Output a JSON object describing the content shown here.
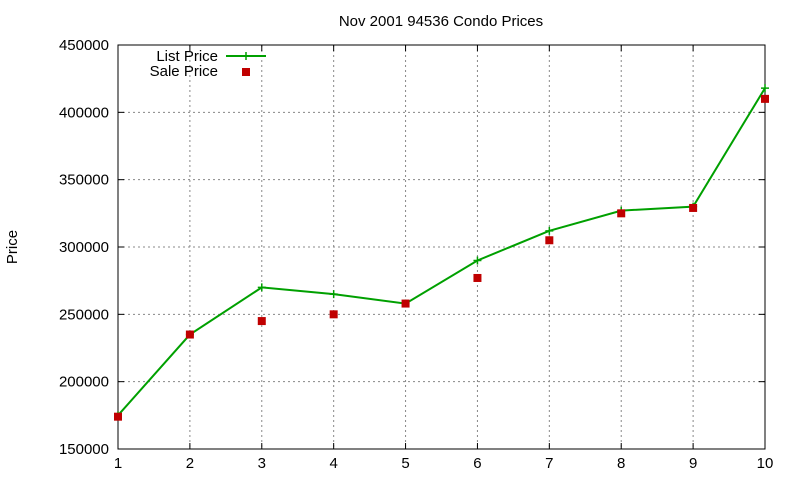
{
  "chart_data": {
    "type": "line",
    "title": "Nov 2001 94536 Condo Prices",
    "xlabel": "",
    "ylabel": "Price",
    "x": [
      1,
      2,
      3,
      4,
      5,
      6,
      7,
      8,
      9,
      10
    ],
    "xlim": [
      1,
      10
    ],
    "ylim": [
      150000,
      450000
    ],
    "x_ticks": [
      "1",
      "2",
      "3",
      "4",
      "5",
      "6",
      "7",
      "8",
      "9",
      "10"
    ],
    "y_ticks": [
      "150000",
      "200000",
      "250000",
      "300000",
      "350000",
      "400000",
      "450000"
    ],
    "grid": true,
    "legend_position": "top-left",
    "series": [
      {
        "name": "List Price",
        "style": "line-with-plus-markers",
        "color": "#00a000",
        "values": [
          175000,
          235000,
          270000,
          265000,
          258000,
          290000,
          312000,
          327000,
          330000,
          418000
        ]
      },
      {
        "name": "Sale Price",
        "style": "square-markers",
        "color": "#c00000",
        "values": [
          174000,
          235000,
          245000,
          250000,
          258000,
          277000,
          305000,
          325000,
          329000,
          410000
        ]
      }
    ]
  }
}
